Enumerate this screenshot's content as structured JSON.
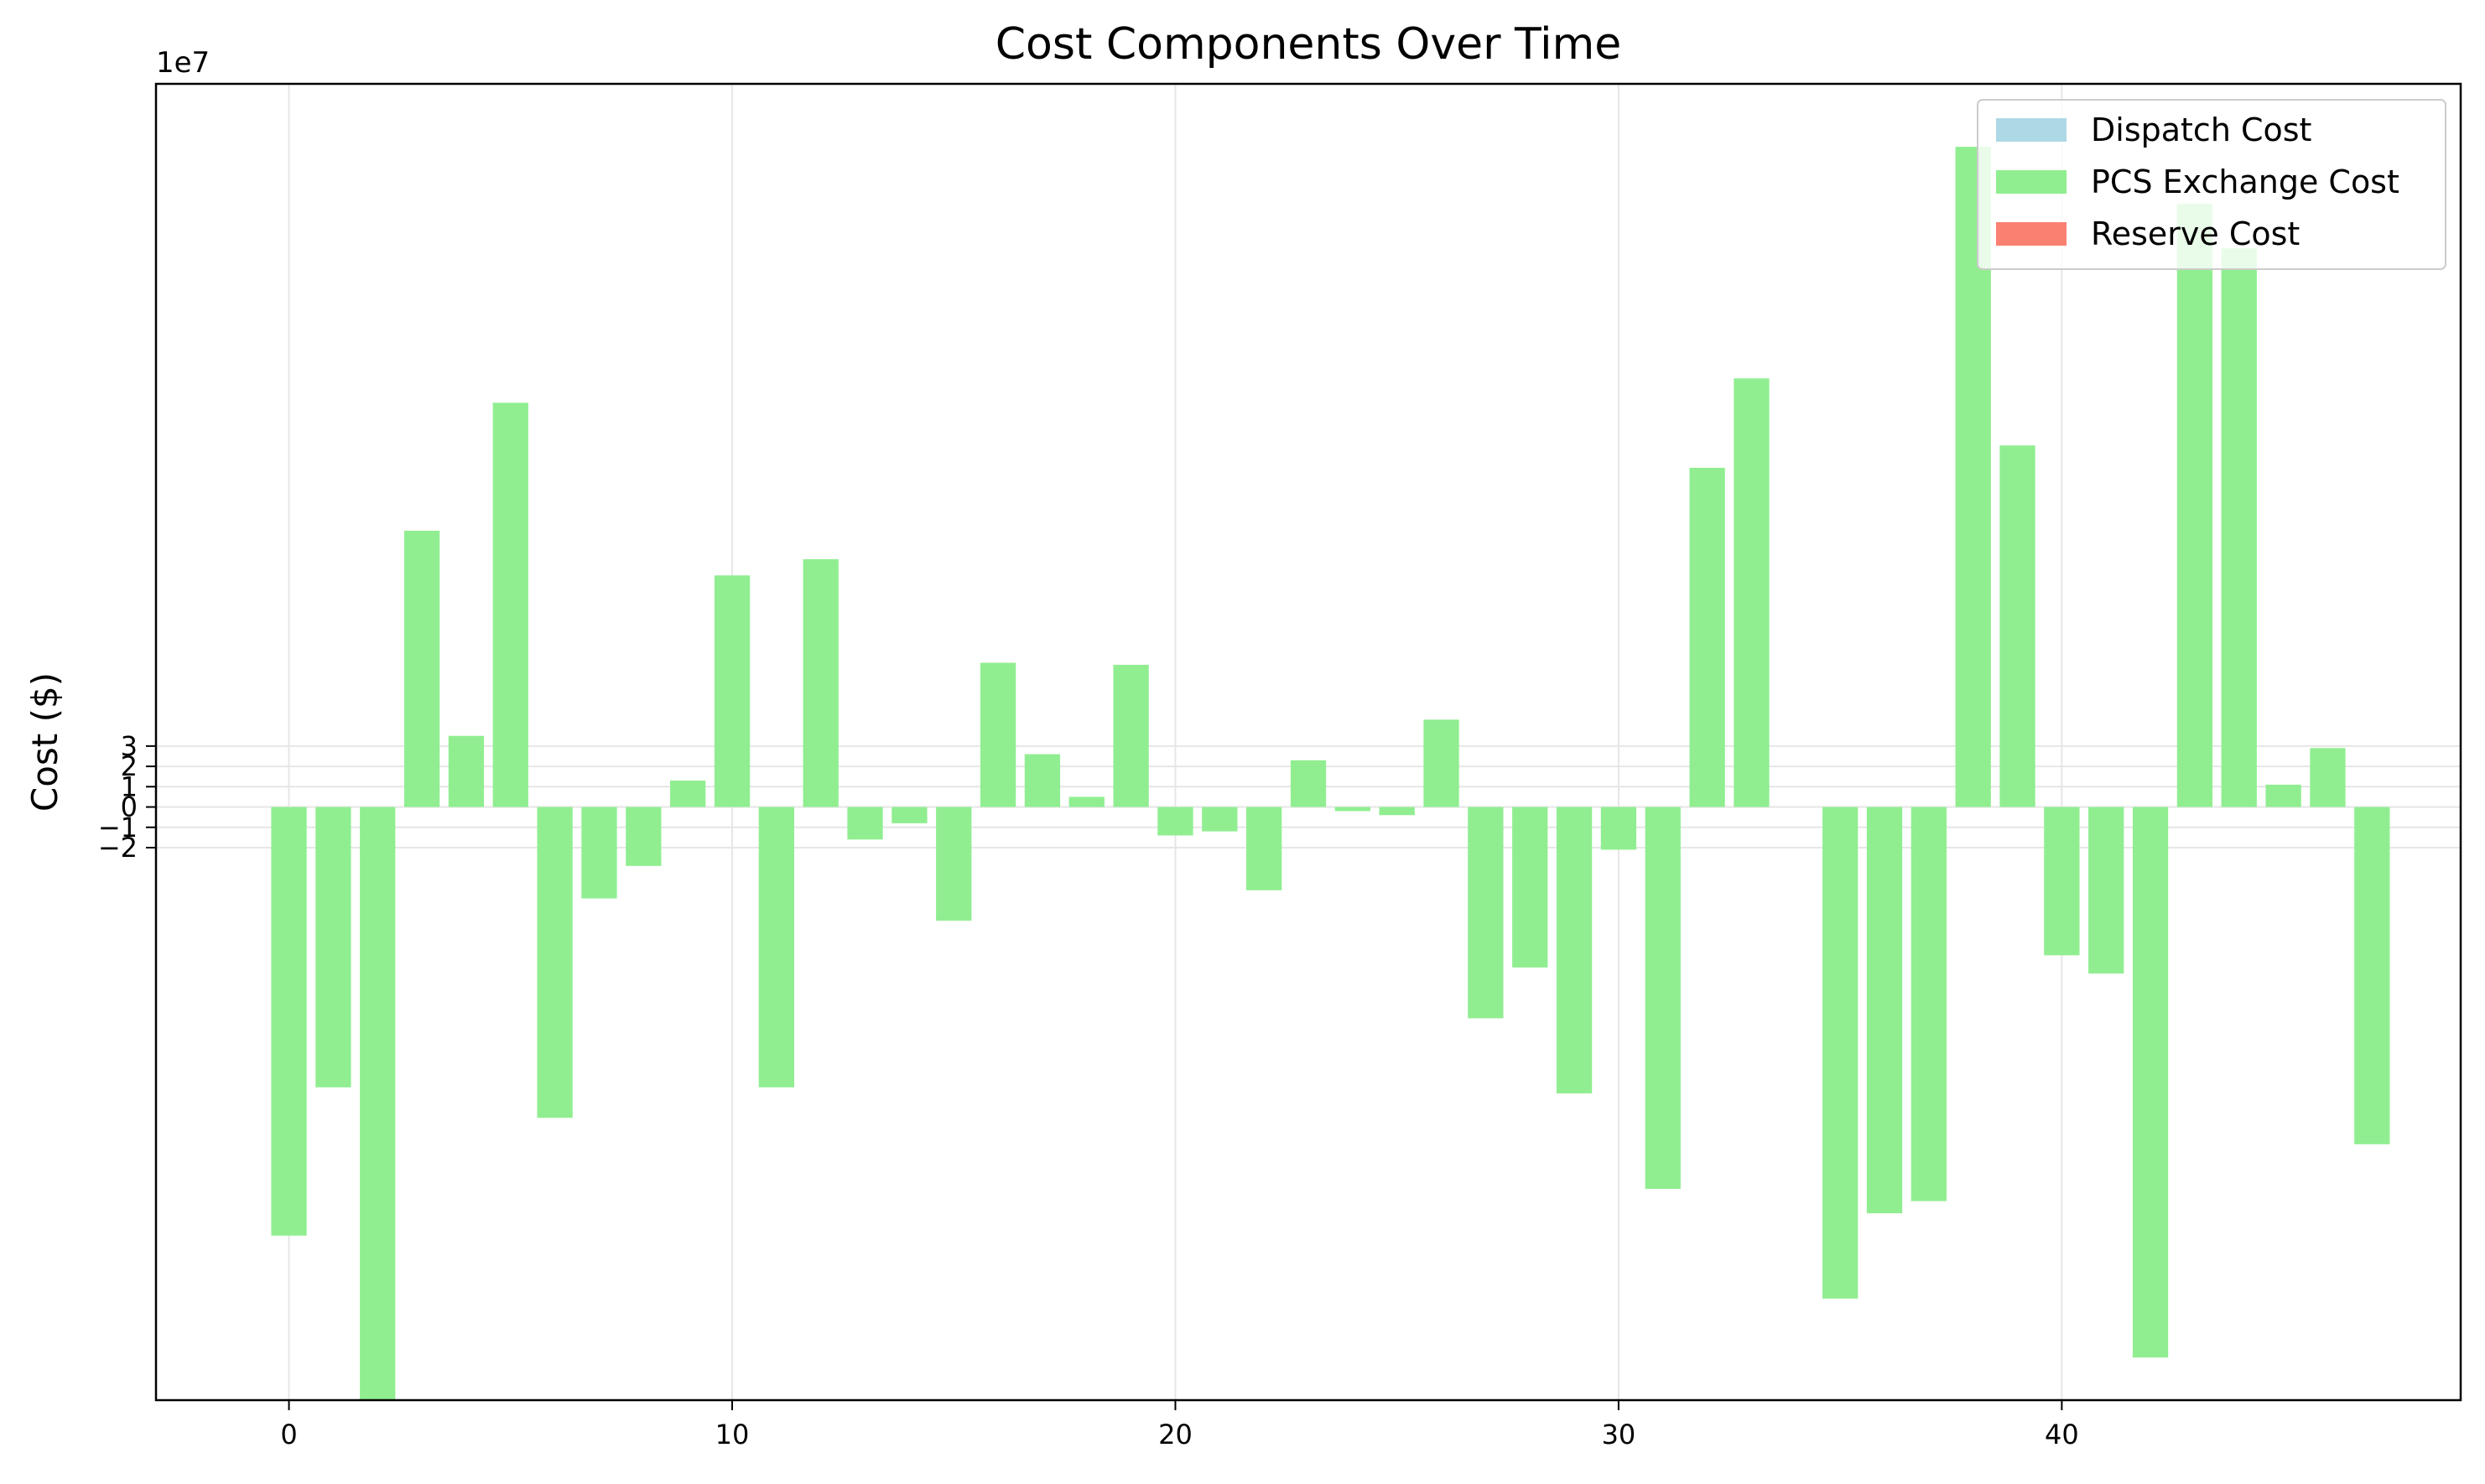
{
  "chart_data": {
    "type": "bar",
    "title": "Cost Components Over Time",
    "xlabel": "",
    "ylabel": "Cost ($)",
    "y_offset_text": "1e7",
    "xlim": [
      -3,
      49
    ],
    "ylim": [
      -29.2,
      35.6
    ],
    "y_scale_factor": 10000000,
    "x_ticks": [
      0,
      10,
      20,
      30,
      40
    ],
    "y_ticks": [
      -2,
      -1,
      0,
      1,
      2,
      3
    ],
    "y_tick_labels": [
      "−2",
      "−1",
      "0",
      "1",
      "2",
      "3"
    ],
    "grid": true,
    "legend_position": "top-right",
    "x": [
      0,
      1,
      2,
      3,
      4,
      5,
      6,
      7,
      8,
      9,
      10,
      11,
      12,
      13,
      14,
      15,
      16,
      17,
      18,
      19,
      20,
      21,
      22,
      23,
      24,
      25,
      26,
      27,
      28,
      29,
      30,
      31,
      32,
      33,
      34,
      35,
      36,
      37,
      38,
      39,
      40,
      41,
      42,
      43,
      44,
      45,
      46,
      47
    ],
    "series": [
      {
        "name": "Dispatch Cost",
        "color": "#add8e6",
        "values": [
          0,
          0,
          0,
          0,
          0,
          0,
          0,
          0,
          0,
          0,
          0,
          0,
          0,
          0,
          0,
          0,
          0,
          0,
          0,
          0,
          0,
          0,
          0,
          0,
          0,
          0,
          0,
          0,
          0,
          0,
          0,
          0,
          0,
          0,
          0,
          0,
          0,
          0,
          0,
          0,
          0,
          0,
          0,
          0,
          0,
          0,
          0,
          0
        ]
      },
      {
        "name": "PCS Exchange Cost",
        "color": "#90ee90",
        "values": [
          -21.1,
          -13.8,
          -29.2,
          13.6,
          3.5,
          19.9,
          -15.3,
          -4.5,
          -2.9,
          1.3,
          11.4,
          -13.8,
          12.2,
          -1.6,
          -0.8,
          -5.6,
          7.1,
          2.6,
          0.5,
          7.0,
          -1.4,
          -1.2,
          -4.1,
          2.3,
          -0.2,
          -0.4,
          4.3,
          -10.4,
          -7.9,
          -14.1,
          -2.1,
          -18.8,
          16.7,
          21.1,
          0,
          -24.2,
          -20.0,
          -19.4,
          32.5,
          17.8,
          -7.3,
          -8.2,
          -27.1,
          29.7,
          27.5,
          1.1,
          2.9,
          -16.6
        ]
      },
      {
        "name": "Reserve Cost",
        "color": "#fa8072",
        "values": [
          0,
          0,
          0,
          0,
          0,
          0,
          0,
          0,
          0,
          0,
          0,
          0,
          0,
          0,
          0,
          0,
          0,
          0,
          0,
          0,
          0,
          0,
          0,
          0,
          0,
          0,
          0,
          0,
          0,
          0,
          0,
          0,
          0,
          0,
          0,
          0,
          0,
          0,
          0,
          0,
          0,
          0,
          0,
          0,
          0,
          0,
          0,
          0
        ]
      }
    ]
  }
}
